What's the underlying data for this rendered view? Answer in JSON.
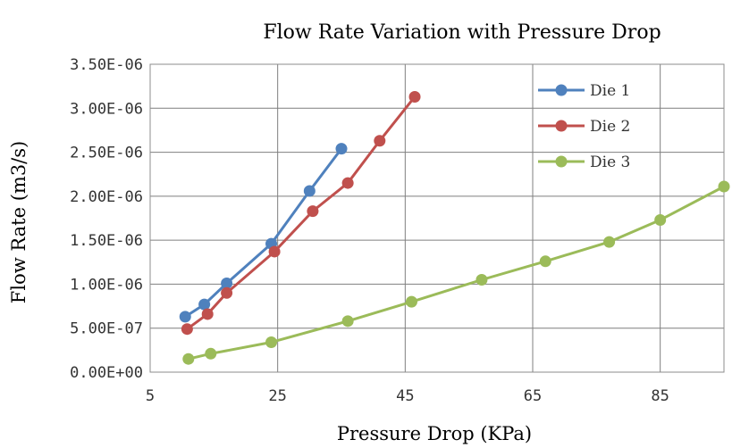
{
  "chart_data": {
    "type": "line",
    "title": "Flow Rate Variation with Pressure Drop",
    "xlabel": "Pressure Drop (KPa)",
    "ylabel": "Flow Rate (m3/s)",
    "xlim": [
      5,
      95
    ],
    "ylim": [
      0,
      3.5e-06
    ],
    "x_ticks": [
      5,
      25,
      45,
      65,
      85
    ],
    "x_tick_labels": [
      "5",
      "25",
      "45",
      "65",
      "85"
    ],
    "y_ticks": [
      0,
      5e-07,
      1e-06,
      1.5e-06,
      2e-06,
      2.5e-06,
      3e-06,
      3.5e-06
    ],
    "y_tick_labels": [
      "0.00E+00",
      "5.00E-07",
      "1.00E-06",
      "1.50E-06",
      "2.00E-06",
      "2.50E-06",
      "3.00E-06",
      "3.50E-06"
    ],
    "grid": true,
    "legend_position": "top-right",
    "series": [
      {
        "name": "Die 1",
        "color": "#4f81bd",
        "x": [
          10.5,
          13.5,
          17,
          24,
          30,
          35
        ],
        "y": [
          6.3e-07,
          7.7e-07,
          1.01e-06,
          1.46e-06,
          2.06e-06,
          2.54e-06
        ]
      },
      {
        "name": "Die 2",
        "color": "#c0504d",
        "x": [
          10.8,
          14,
          17,
          24.5,
          30.5,
          36,
          41,
          46.5
        ],
        "y": [
          4.9e-07,
          6.6e-07,
          9e-07,
          1.37e-06,
          1.83e-06,
          2.15e-06,
          2.63e-06,
          3.13e-06
        ]
      },
      {
        "name": "Die 3",
        "color": "#9bbb59",
        "x": [
          11,
          14.5,
          24,
          36,
          46,
          57,
          67,
          77,
          85,
          95
        ],
        "y": [
          1.5e-07,
          2.1e-07,
          3.4e-07,
          5.8e-07,
          8e-07,
          1.05e-06,
          1.26e-06,
          1.48e-06,
          1.73e-06,
          2.11e-06
        ]
      }
    ]
  }
}
